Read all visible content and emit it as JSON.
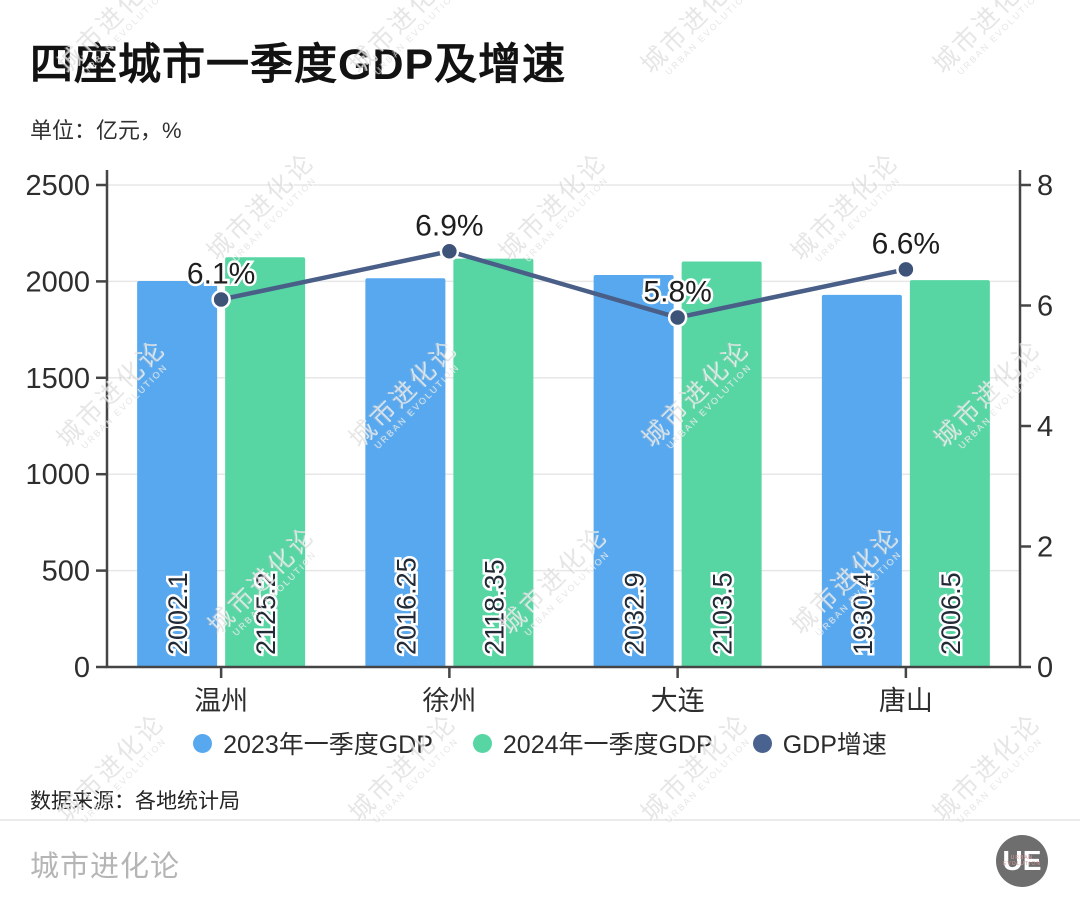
{
  "title": "四座城市一季度GDP及增速",
  "subtitle": "单位：亿元，%",
  "source": "数据来源：各地统计局",
  "footer": {
    "brand": "城市进化论",
    "logo_text": "UE",
    "logo_subtext": "URBAN EVOLUTION"
  },
  "watermark": {
    "line1": "城市进化论",
    "line2": "URBAN EVOLUTION"
  },
  "colors": {
    "bar_2023": "#57A8EF",
    "bar_2024": "#57D6A4",
    "growth_line": "#4A5F87",
    "marker": "#3E5378",
    "axis": "#454545",
    "grid": "#e7e7e7",
    "tick_label": "#2e2e2e"
  },
  "legend": {
    "items": [
      {
        "label": "2023年一季度GDP",
        "color": "#57A8EF"
      },
      {
        "label": "2024年一季度GDP",
        "color": "#57D6A4"
      },
      {
        "label": "GDP增速",
        "color": "#4A6290"
      }
    ]
  },
  "chart_data": {
    "type": "bar",
    "subtype": "grouped bars with overlay line on secondary axis",
    "categories": [
      "温州",
      "徐州",
      "大连",
      "唐山"
    ],
    "series": [
      {
        "name": "2023年一季度GDP",
        "type": "bar",
        "axis": "left",
        "values": [
          2002.1,
          2016.25,
          2032.9,
          1930.4
        ]
      },
      {
        "name": "2024年一季度GDP",
        "type": "bar",
        "axis": "left",
        "values": [
          2125.2,
          2118.35,
          2103.5,
          2006.5
        ]
      },
      {
        "name": "GDP增速",
        "type": "line",
        "axis": "right",
        "values": [
          6.1,
          6.9,
          5.8,
          6.6
        ],
        "labels": [
          "6.1%",
          "6.9%",
          "5.8%",
          "6.6%"
        ]
      }
    ],
    "title": "四座城市一季度GDP及增速",
    "xlabel": "",
    "ylabel": "单位：亿元，%",
    "y_left": {
      "min": 0,
      "max": 2500,
      "ticks": [
        0,
        500,
        1000,
        1500,
        2000,
        2500
      ]
    },
    "y_right": {
      "min": 0,
      "max": 8,
      "ticks": [
        0,
        2,
        4,
        6,
        8
      ]
    },
    "grid": "horizontal gridlines at left-axis ticks",
    "legend_position": "bottom"
  }
}
